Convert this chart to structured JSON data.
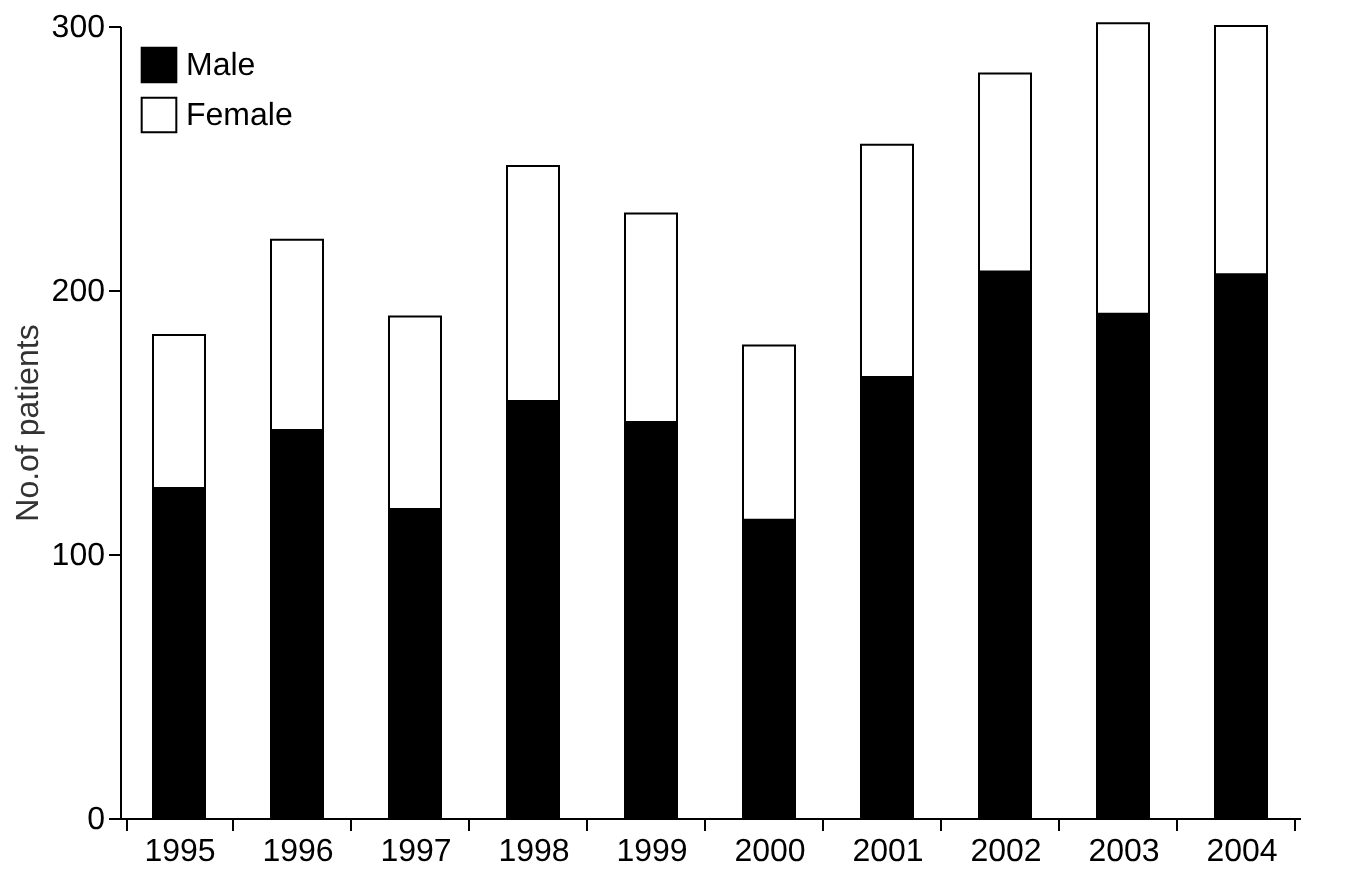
{
  "chart_data": {
    "type": "bar",
    "stacked": true,
    "ylabel": "No.of patients",
    "categories": [
      "1995",
      "1996",
      "1997",
      "1998",
      "1999",
      "2000",
      "2001",
      "2002",
      "2003",
      "2004"
    ],
    "series": [
      {
        "name": "Male",
        "color": "#000000",
        "values": [
          125,
          147,
          117,
          158,
          150,
          113,
          167,
          207,
          191,
          206
        ]
      },
      {
        "name": "Female",
        "color": "#ffffff",
        "values": [
          58,
          72,
          73,
          89,
          79,
          66,
          88,
          75,
          110,
          94
        ]
      }
    ],
    "ylim": [
      0,
      300
    ],
    "yticks": [
      0,
      100,
      200,
      300
    ],
    "grid": false,
    "legend": "top left"
  }
}
